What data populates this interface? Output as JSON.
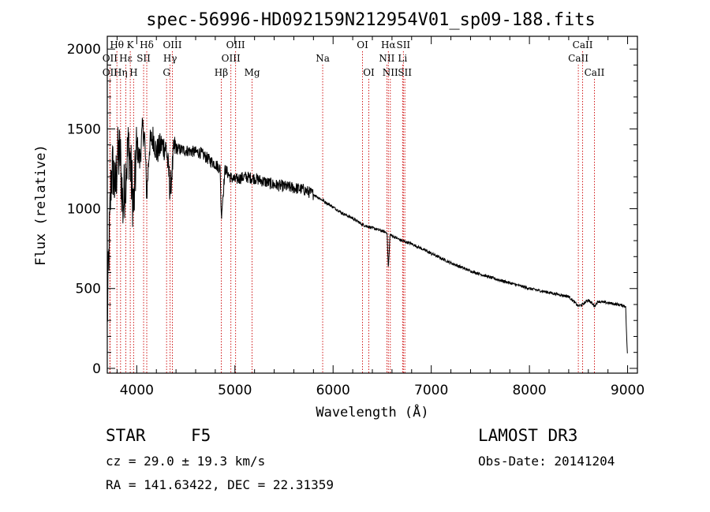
{
  "chart_data": {
    "type": "line",
    "title": "spec-56996-HD092159N212954V01_sp09-188.fits",
    "xlabel": "Wavelength (Å)",
    "ylabel": "Flux (relative)",
    "xlim": [
      3700,
      9100
    ],
    "ylim": [
      -30,
      2080
    ],
    "xticks": [
      4000,
      5000,
      6000,
      7000,
      8000,
      9000
    ],
    "yticks": [
      0,
      500,
      1000,
      1500,
      2000
    ],
    "series": [
      {
        "name": "spectrum",
        "x": [
          3700,
          3720,
          3740,
          3760,
          3780,
          3800,
          3830,
          3860,
          3890,
          3920,
          3950,
          3970,
          4000,
          4030,
          4060,
          4080,
          4102,
          4130,
          4170,
          4200,
          4250,
          4300,
          4330,
          4340,
          4380,
          4450,
          4550,
          4650,
          4750,
          4800,
          4850,
          4861,
          4900,
          4950,
          5000,
          5100,
          5200,
          5300,
          5400,
          5500,
          5600,
          5700,
          5800,
          5900,
          6000,
          6100,
          6200,
          6300,
          6400,
          6500,
          6550,
          6563,
          6580,
          6600,
          6700,
          6800,
          7000,
          7200,
          7400,
          7600,
          7800,
          8000,
          8200,
          8400,
          8498,
          8542,
          8600,
          8662,
          8700,
          8800,
          8900,
          8980,
          8990,
          9000
        ],
        "y": [
          300,
          800,
          1200,
          1250,
          1100,
          1300,
          1350,
          1000,
          1250,
          1400,
          1150,
          1000,
          1400,
          1300,
          1500,
          1450,
          1080,
          1400,
          1450,
          1350,
          1400,
          1380,
          1200,
          1100,
          1380,
          1370,
          1360,
          1350,
          1300,
          1280,
          1250,
          950,
          1250,
          1200,
          1180,
          1200,
          1190,
          1170,
          1150,
          1140,
          1130,
          1120,
          1090,
          1050,
          1010,
          970,
          940,
          900,
          880,
          860,
          850,
          620,
          840,
          830,
          800,
          780,
          720,
          660,
          610,
          570,
          535,
          500,
          475,
          450,
          390,
          400,
          430,
          390,
          420,
          410,
          400,
          390,
          200,
          60
        ]
      }
    ],
    "spectral_lines": [
      {
        "name": "Hθ",
        "wave": 3798,
        "row": 1
      },
      {
        "name": "OII",
        "wave": 3727,
        "row": 2
      },
      {
        "name": "OII",
        "wave": 3727,
        "row": 3
      },
      {
        "name": "K",
        "wave": 3934,
        "row": 1
      },
      {
        "name": "Hε",
        "wave": 3889,
        "row": 2
      },
      {
        "name": "Hη",
        "wave": 3835,
        "row": 3
      },
      {
        "name": "SII",
        "wave": 4070,
        "row": 2
      },
      {
        "name": "H",
        "wave": 3968,
        "row": 3
      },
      {
        "name": "Hδ",
        "wave": 4102,
        "row": 1
      },
      {
        "name": "OIII",
        "wave": 4363,
        "row": 1
      },
      {
        "name": "Hγ",
        "wave": 4340,
        "row": 2
      },
      {
        "name": "G",
        "wave": 4304,
        "row": 3
      },
      {
        "name": "Hβ",
        "wave": 4861,
        "row": 3
      },
      {
        "name": "OIII",
        "wave": 5007,
        "row": 1
      },
      {
        "name": "OIII",
        "wave": 4959,
        "row": 2
      },
      {
        "name": "Mg",
        "wave": 5175,
        "row": 3
      },
      {
        "name": "Na",
        "wave": 5894,
        "row": 2
      },
      {
        "name": "OI",
        "wave": 6300,
        "row": 1
      },
      {
        "name": "OI",
        "wave": 6364,
        "row": 3
      },
      {
        "name": "Hα",
        "wave": 6563,
        "row": 1
      },
      {
        "name": "NII",
        "wave": 6548,
        "row": 2
      },
      {
        "name": "NII",
        "wave": 6583,
        "row": 3
      },
      {
        "name": "SII",
        "wave": 6716,
        "row": 1
      },
      {
        "name": "Li",
        "wave": 6708,
        "row": 2
      },
      {
        "name": "SII",
        "wave": 6731,
        "row": 3
      },
      {
        "name": "CaII",
        "wave": 8542,
        "row": 1
      },
      {
        "name": "CaII",
        "wave": 8498,
        "row": 2
      },
      {
        "name": "CaII",
        "wave": 8662,
        "row": 3
      }
    ],
    "colors": {
      "spectrum": "#000000",
      "lines": "#cc0000",
      "axes": "#000000"
    }
  },
  "info": {
    "class": "STAR",
    "subclass": "F5",
    "survey": "LAMOST DR3",
    "cz": "cz = 29.0 ± 19.3 km/s",
    "obs_date": "Obs-Date: 20141204",
    "coords": "RA = 141.63422, DEC =  22.31359"
  }
}
